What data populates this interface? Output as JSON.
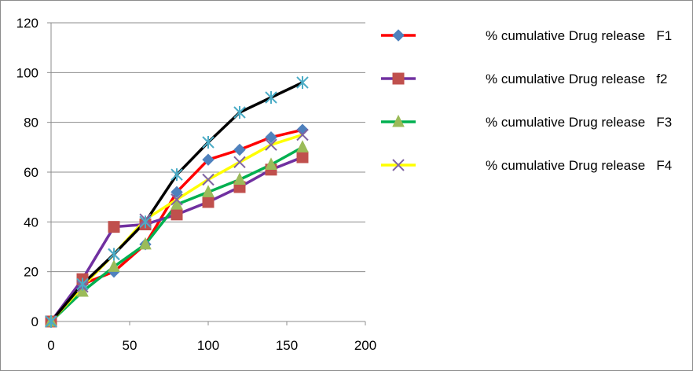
{
  "chart_data": {
    "type": "line",
    "title": "",
    "xlabel": "",
    "ylabel": "",
    "xlim": [
      0,
      200
    ],
    "ylim": [
      0,
      120
    ],
    "x_ticks": [
      0,
      50,
      100,
      150,
      200
    ],
    "y_ticks": [
      0,
      20,
      40,
      60,
      80,
      100,
      120
    ],
    "grid": "horizontal",
    "legend_position": "right",
    "series": [
      {
        "name": "% cumulative Drug release   F1",
        "color": "#ff0000",
        "marker": "diamond",
        "marker_color": "#4f81bd",
        "x": [
          0,
          20,
          40,
          60,
          80,
          100,
          120,
          140,
          160
        ],
        "y": [
          0,
          15,
          20,
          31,
          52,
          65,
          69,
          74,
          77
        ]
      },
      {
        "name": "% cumulative Drug release   f2",
        "color": "#7030a0",
        "marker": "square",
        "marker_color": "#c0504d",
        "x": [
          0,
          20,
          40,
          60,
          80,
          100,
          120,
          140,
          160
        ],
        "y": [
          0,
          17,
          38,
          39,
          43,
          48,
          54,
          61,
          66
        ]
      },
      {
        "name": "% cumulative Drug release   F3",
        "color": "#00b050",
        "marker": "triangle",
        "marker_color": "#9bbb59",
        "x": [
          0,
          20,
          40,
          60,
          80,
          100,
          120,
          140,
          160
        ],
        "y": [
          0,
          12,
          22,
          31,
          47,
          52,
          57,
          63,
          70
        ]
      },
      {
        "name": "% cumulative Drug release   F4",
        "color": "#ffff00",
        "marker": "x",
        "marker_color": "#8064a2",
        "x": [
          0,
          20,
          40,
          60,
          80,
          100,
          120,
          140,
          160
        ],
        "y": [
          0,
          14,
          27,
          41,
          49,
          57,
          64,
          71,
          75
        ]
      },
      {
        "name": "",
        "color": "#000000",
        "marker": "star",
        "marker_color": "#4bacc6",
        "x": [
          0,
          20,
          40,
          60,
          80,
          100,
          120,
          140,
          160
        ],
        "y": [
          0,
          15,
          27,
          40,
          59,
          72,
          84,
          90,
          96
        ]
      }
    ]
  }
}
